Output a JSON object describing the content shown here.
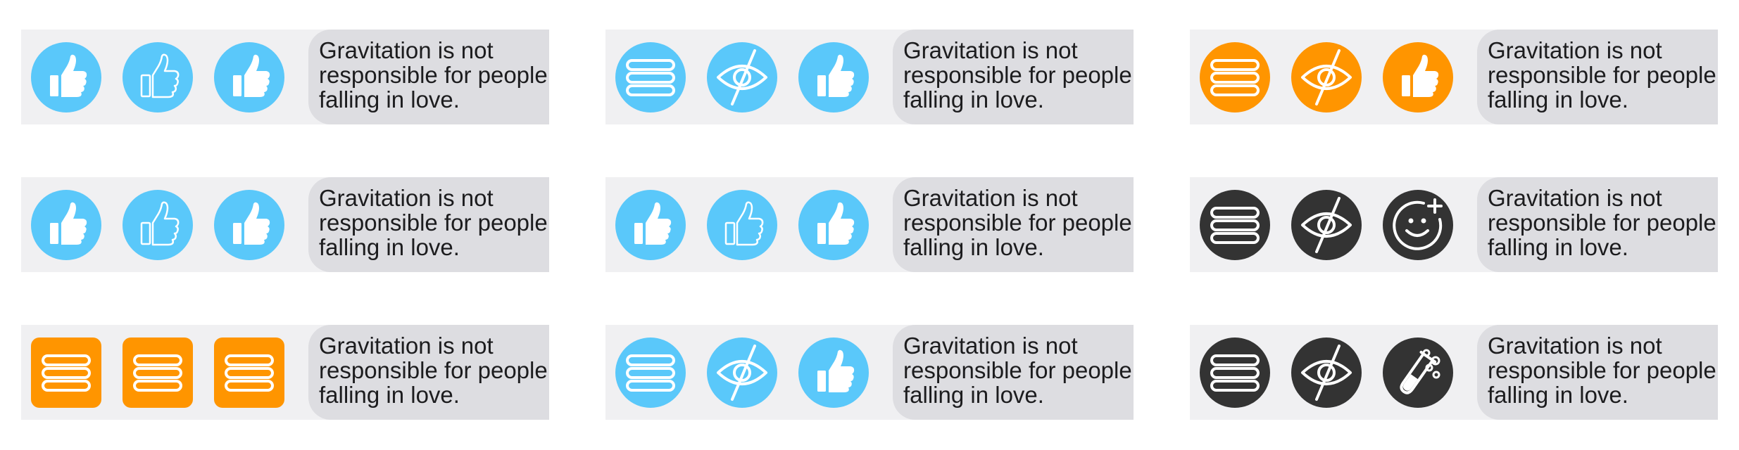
{
  "message_text": "Gravitation is not\nresponsible for people\nfalling in love.",
  "colors": {
    "blue": "#5ac8fa",
    "orange": "#ff9500",
    "dark": "#333333",
    "cell_background": "#f0f0f2",
    "bubble_background": "#dddde1"
  },
  "cells": [
    {
      "row": 1,
      "col": 1,
      "buttons": [
        {
          "icon": "thumbs-up-filled-icon",
          "color": "blue",
          "shape": "circle"
        },
        {
          "icon": "thumbs-up-outline-icon",
          "color": "blue",
          "shape": "circle"
        },
        {
          "icon": "thumbs-up-filled-icon",
          "color": "blue",
          "shape": "circle"
        }
      ]
    },
    {
      "row": 1,
      "col": 2,
      "buttons": [
        {
          "icon": "menu-icon",
          "color": "blue",
          "shape": "circle"
        },
        {
          "icon": "eye-slash-icon",
          "color": "blue",
          "shape": "circle"
        },
        {
          "icon": "thumbs-up-filled-icon",
          "color": "blue",
          "shape": "circle"
        }
      ]
    },
    {
      "row": 1,
      "col": 3,
      "buttons": [
        {
          "icon": "menu-icon",
          "color": "orange",
          "shape": "circle"
        },
        {
          "icon": "eye-slash-icon",
          "color": "orange",
          "shape": "circle"
        },
        {
          "icon": "thumbs-up-filled-icon",
          "color": "orange",
          "shape": "circle"
        }
      ]
    },
    {
      "row": 2,
      "col": 1,
      "buttons": [
        {
          "icon": "thumbs-up-filled-icon",
          "color": "blue",
          "shape": "circle"
        },
        {
          "icon": "thumbs-up-outline-icon",
          "color": "blue",
          "shape": "circle"
        },
        {
          "icon": "thumbs-up-filled-icon",
          "color": "blue",
          "shape": "circle"
        }
      ]
    },
    {
      "row": 2,
      "col": 2,
      "buttons": [
        {
          "icon": "thumbs-up-filled-icon",
          "color": "blue",
          "shape": "circle"
        },
        {
          "icon": "thumbs-up-outline-icon",
          "color": "blue",
          "shape": "circle"
        },
        {
          "icon": "thumbs-up-filled-icon",
          "color": "blue",
          "shape": "circle"
        }
      ]
    },
    {
      "row": 2,
      "col": 3,
      "buttons": [
        {
          "icon": "menu-icon",
          "color": "dark",
          "shape": "circle"
        },
        {
          "icon": "eye-slash-icon",
          "color": "dark",
          "shape": "circle"
        },
        {
          "icon": "add-smiley-icon",
          "color": "dark",
          "shape": "circle"
        }
      ]
    },
    {
      "row": 3,
      "col": 1,
      "buttons": [
        {
          "icon": "menu-icon",
          "color": "orange",
          "shape": "square"
        },
        {
          "icon": "menu-icon",
          "color": "orange",
          "shape": "square"
        },
        {
          "icon": "menu-icon",
          "color": "orange",
          "shape": "square"
        }
      ]
    },
    {
      "row": 3,
      "col": 2,
      "buttons": [
        {
          "icon": "menu-icon",
          "color": "blue",
          "shape": "circle"
        },
        {
          "icon": "eye-slash-icon",
          "color": "blue",
          "shape": "circle"
        },
        {
          "icon": "thumbs-up-filled-icon",
          "color": "blue",
          "shape": "circle"
        }
      ]
    },
    {
      "row": 3,
      "col": 3,
      "buttons": [
        {
          "icon": "menu-icon",
          "color": "dark",
          "shape": "circle"
        },
        {
          "icon": "eye-slash-icon",
          "color": "dark",
          "shape": "circle"
        },
        {
          "icon": "test-tube-icon",
          "color": "dark",
          "shape": "circle"
        }
      ]
    }
  ]
}
